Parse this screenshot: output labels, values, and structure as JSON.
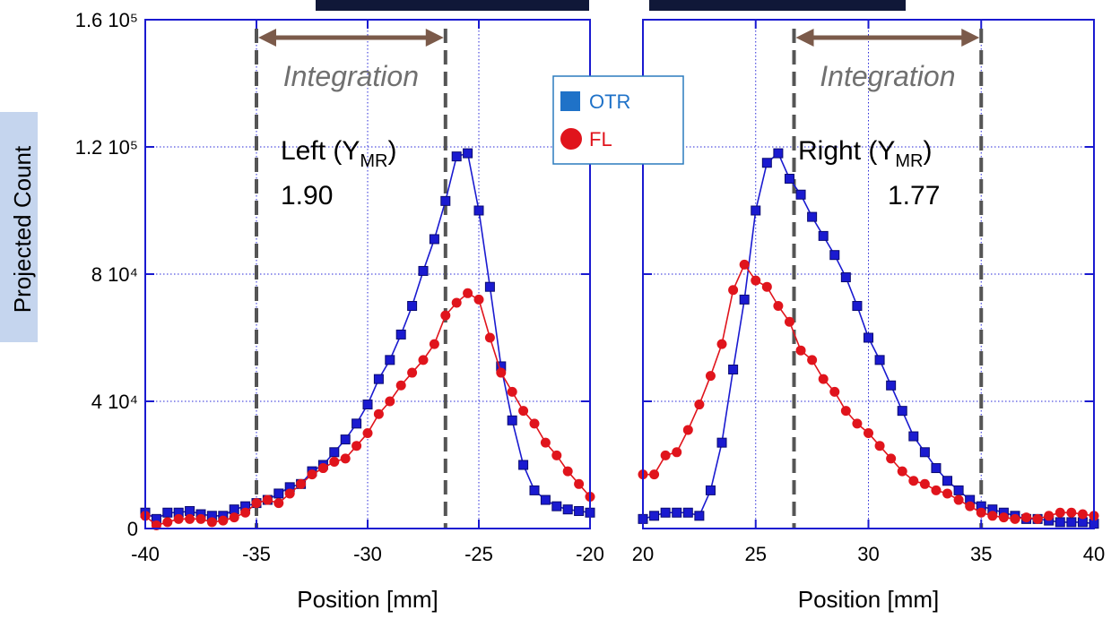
{
  "chart_data": [
    {
      "type": "line",
      "xlabel": "Position [mm]",
      "ylabel": "Projected Count",
      "x": [
        -40,
        -39.5,
        -39,
        -38.5,
        -38,
        -37.5,
        -37,
        -36.5,
        -36,
        -35.5,
        -35,
        -34.5,
        -34,
        -33.5,
        -33,
        -32.5,
        -32,
        -31.5,
        -31,
        -30.5,
        -30,
        -29.5,
        -29,
        -28.5,
        -28,
        -27.5,
        -27,
        -26.5,
        -26,
        -25.5,
        -25,
        -24.5,
        -24,
        -23.5,
        -23,
        -22.5,
        -22,
        -21.5,
        -21,
        -20.5,
        -20
      ],
      "series": [
        {
          "name": "OTR",
          "color": "#1a1ad0",
          "marker": "square",
          "values": [
            5000,
            3000,
            5000,
            5000,
            5500,
            4500,
            4000,
            4000,
            6000,
            7000,
            8000,
            9000,
            11000,
            13000,
            14000,
            18000,
            20000,
            24000,
            28000,
            33000,
            39000,
            47000,
            53000,
            61000,
            70000,
            81000,
            91000,
            103000,
            117000,
            118000,
            100000,
            76000,
            51000,
            34000,
            20000,
            12000,
            9000,
            7000,
            6000,
            5500,
            5000
          ]
        },
        {
          "name": "FL",
          "color": "#e0141c",
          "marker": "circle",
          "values": [
            4000,
            1000,
            2000,
            3000,
            3000,
            3000,
            2000,
            2500,
            3500,
            5000,
            8000,
            9000,
            8000,
            11000,
            14000,
            17000,
            19000,
            21000,
            22000,
            26000,
            30000,
            36000,
            40000,
            45000,
            49000,
            53000,
            58000,
            67000,
            71000,
            74000,
            72000,
            60000,
            49000,
            43000,
            37000,
            33000,
            27000,
            23000,
            18000,
            14000,
            10000
          ]
        }
      ],
      "xlim": [
        -40,
        -20
      ],
      "xticks": [
        -40,
        -35,
        -30,
        -25,
        -20
      ],
      "ylim": [
        0,
        160000
      ],
      "yticks": [
        0,
        {
          "value": 40000,
          "label": "4 10⁴"
        },
        {
          "value": 80000,
          "label": "8 10⁴"
        },
        {
          "value": 120000,
          "label": "1.2 10⁵"
        },
        {
          "value": 160000,
          "label": "1.6 10⁵"
        }
      ],
      "show_ytick_labels": true,
      "grid": true,
      "legend": "top-right",
      "integration": {
        "label": "Integration",
        "range": [
          -35,
          -26.5
        ]
      },
      "region_label": {
        "main": "Left  (Y",
        "subscript": "MR",
        "close": ")"
      },
      "ratio": "1.90"
    },
    {
      "type": "line",
      "xlabel": "Position [mm]",
      "x": [
        20,
        20.5,
        21,
        21.5,
        22,
        22.5,
        23,
        23.5,
        24,
        24.5,
        25,
        25.5,
        26,
        26.5,
        27,
        27.5,
        28,
        28.5,
        29,
        29.5,
        30,
        30.5,
        31,
        31.5,
        32,
        32.5,
        33,
        33.5,
        34,
        34.5,
        35,
        35.5,
        36,
        36.5,
        37,
        37.5,
        38,
        38.5,
        39,
        39.5,
        40
      ],
      "series": [
        {
          "name": "OTR",
          "color": "#1a1ad0",
          "marker": "square",
          "values": [
            3000,
            4000,
            5000,
            5000,
            5000,
            4000,
            12000,
            27000,
            50000,
            72000,
            100000,
            115000,
            118000,
            110000,
            105000,
            98000,
            92000,
            86000,
            79000,
            70000,
            60000,
            53000,
            45000,
            37000,
            29000,
            24000,
            19000,
            15000,
            12000,
            9000,
            7000,
            6000,
            5000,
            4000,
            3000,
            3000,
            2500,
            2000,
            2000,
            2000,
            1500
          ]
        },
        {
          "name": "FL",
          "color": "#e0141c",
          "marker": "circle",
          "values": [
            17000,
            17000,
            23000,
            24000,
            31000,
            39000,
            48000,
            58000,
            75000,
            83000,
            78000,
            76000,
            70000,
            65000,
            56000,
            53000,
            47000,
            43000,
            37000,
            33000,
            30000,
            26000,
            22000,
            18000,
            15000,
            14000,
            12000,
            11000,
            9000,
            7000,
            5000,
            4000,
            3500,
            3000,
            3500,
            3000,
            4000,
            5000,
            5000,
            4500,
            4000
          ]
        }
      ],
      "xlim": [
        20,
        40
      ],
      "xticks": [
        20,
        25,
        30,
        35,
        40
      ],
      "ylim": [
        0,
        160000
      ],
      "yticks": [
        0,
        40000,
        80000,
        120000,
        160000
      ],
      "show_ytick_labels": false,
      "grid": true,
      "integration": {
        "label": "Integration",
        "range": [
          26.7,
          35
        ]
      },
      "region_label": {
        "main": "Right (Y",
        "subscript": "MR",
        "close": ")"
      },
      "ratio": "1.77"
    }
  ]
}
